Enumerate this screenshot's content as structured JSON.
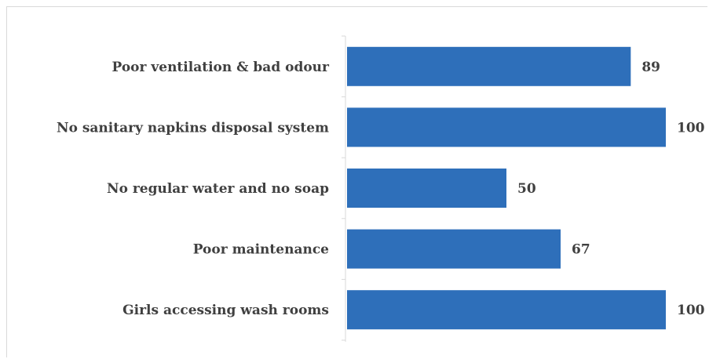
{
  "chart_data": {
    "type": "bar",
    "orientation": "horizontal",
    "title": "",
    "xlabel": "",
    "ylabel": "",
    "categories": [
      "Poor ventilation & bad odour",
      "No sanitary napkins disposal system",
      "No regular water and no soap",
      "Poor maintenance",
      "Girls accessing wash rooms"
    ],
    "values": [
      89,
      100,
      50,
      67,
      100
    ],
    "value_labels": [
      "89",
      "100",
      "50",
      "67",
      "100"
    ],
    "xlim": [
      0,
      100
    ],
    "grid": false,
    "legend": "none",
    "bar_color": "#2e6fba"
  }
}
